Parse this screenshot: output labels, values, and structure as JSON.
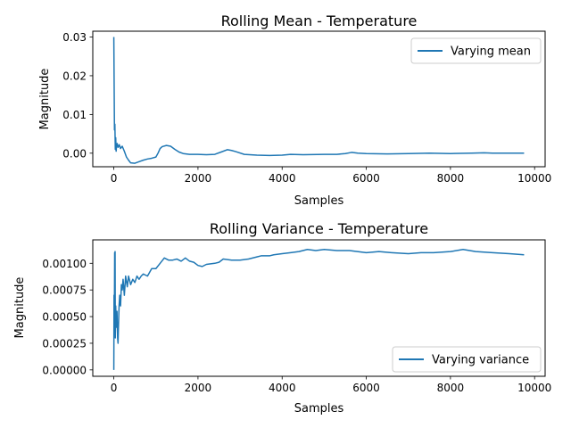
{
  "figure": {
    "background": "#ffffff"
  },
  "chart_data": [
    {
      "type": "line",
      "title": "Rolling Mean - Temperature",
      "xlabel": "Samples",
      "ylabel": "Magnitude",
      "xlim": [
        -500,
        10250
      ],
      "ylim": [
        -0.0035,
        0.0315
      ],
      "xticks": [
        0,
        2000,
        4000,
        6000,
        8000,
        10000
      ],
      "xtick_labels": [
        "0",
        "2000",
        "4000",
        "6000",
        "8000",
        "10000"
      ],
      "yticks": [
        0.0,
        0.01,
        0.02,
        0.03
      ],
      "ytick_labels": [
        "0.00",
        "0.01",
        "0.02",
        "0.03"
      ],
      "grid": false,
      "legend_position": "upper right",
      "series": [
        {
          "name": "Varying mean",
          "color": "#1f77b4",
          "points": [
            [
              0,
              0.03
            ],
            [
              15,
              0.006
            ],
            [
              25,
              0.0075
            ],
            [
              35,
              0.001
            ],
            [
              45,
              0.004
            ],
            [
              55,
              0.0005
            ],
            [
              65,
              0.002
            ],
            [
              80,
              0.0025
            ],
            [
              100,
              0.0015
            ],
            [
              130,
              0.0022
            ],
            [
              160,
              0.0012
            ],
            [
              200,
              0.0018
            ],
            [
              250,
              0.0005
            ],
            [
              300,
              -0.001
            ],
            [
              350,
              -0.0018
            ],
            [
              400,
              -0.0025
            ],
            [
              500,
              -0.0026
            ],
            [
              600,
              -0.0022
            ],
            [
              700,
              -0.0018
            ],
            [
              800,
              -0.0015
            ],
            [
              900,
              -0.0013
            ],
            [
              1000,
              -0.001
            ],
            [
              1050,
              0.0
            ],
            [
              1100,
              0.0012
            ],
            [
              1150,
              0.0017
            ],
            [
              1250,
              0.002
            ],
            [
              1350,
              0.0018
            ],
            [
              1450,
              0.001
            ],
            [
              1550,
              0.0003
            ],
            [
              1650,
              -0.0001
            ],
            [
              1800,
              -0.0003
            ],
            [
              2000,
              -0.0003
            ],
            [
              2200,
              -0.0004
            ],
            [
              2400,
              -0.0003
            ],
            [
              2550,
              0.0003
            ],
            [
              2700,
              0.0009
            ],
            [
              2800,
              0.0007
            ],
            [
              2900,
              0.0004
            ],
            [
              3100,
              -0.0003
            ],
            [
              3400,
              -0.0005
            ],
            [
              3700,
              -0.0006
            ],
            [
              4000,
              -0.0005
            ],
            [
              4200,
              -0.0003
            ],
            [
              4500,
              -0.0004
            ],
            [
              5000,
              -0.0003
            ],
            [
              5300,
              -0.0003
            ],
            [
              5500,
              -0.0001
            ],
            [
              5650,
              0.0002
            ],
            [
              5800,
              0.0
            ],
            [
              6000,
              -0.0001
            ],
            [
              6500,
              -0.0002
            ],
            [
              7000,
              -0.0001
            ],
            [
              7500,
              0.0
            ],
            [
              8000,
              -0.0001
            ],
            [
              8500,
              0.0
            ],
            [
              8800,
              0.0001
            ],
            [
              9000,
              0.0
            ],
            [
              9500,
              0.0
            ],
            [
              9750,
              0.0
            ]
          ]
        }
      ]
    },
    {
      "type": "line",
      "title": "Rolling Variance - Temperature",
      "xlabel": "Samples",
      "ylabel": "Magnitude",
      "xlim": [
        -500,
        10250
      ],
      "ylim": [
        -6e-05,
        0.00122
      ],
      "xticks": [
        0,
        2000,
        4000,
        6000,
        8000,
        10000
      ],
      "xtick_labels": [
        "0",
        "2000",
        "4000",
        "6000",
        "8000",
        "10000"
      ],
      "yticks": [
        0.0,
        0.00025,
        0.0005,
        0.00075,
        0.001
      ],
      "ytick_labels": [
        "0.00000",
        "0.00025",
        "0.00050",
        "0.00075",
        "0.00100"
      ],
      "grid": false,
      "legend_position": "lower right",
      "series": [
        {
          "name": "Varying variance",
          "color": "#1f77b4",
          "points": [
            [
              0,
              0.0
            ],
            [
              5,
              0.0007
            ],
            [
              10,
              0.0004
            ],
            [
              15,
              0.00065
            ],
            [
              20,
              0.0011
            ],
            [
              25,
              0.0005
            ],
            [
              30,
              0.00111
            ],
            [
              35,
              0.0003
            ],
            [
              45,
              0.0006
            ],
            [
              60,
              0.0004
            ],
            [
              75,
              0.00055
            ],
            [
              90,
              0.0003
            ],
            [
              100,
              0.00025
            ],
            [
              110,
              0.0004
            ],
            [
              125,
              0.0006
            ],
            [
              140,
              0.0007
            ],
            [
              160,
              0.0006
            ],
            [
              180,
              0.0008
            ],
            [
              200,
              0.00075
            ],
            [
              220,
              0.00085
            ],
            [
              250,
              0.0007
            ],
            [
              280,
              0.00088
            ],
            [
              320,
              0.00078
            ],
            [
              350,
              0.00088
            ],
            [
              400,
              0.0008
            ],
            [
              450,
              0.00085
            ],
            [
              500,
              0.00082
            ],
            [
              550,
              0.00088
            ],
            [
              600,
              0.00085
            ],
            [
              650,
              0.00088
            ],
            [
              700,
              0.0009
            ],
            [
              800,
              0.00088
            ],
            [
              900,
              0.00095
            ],
            [
              1000,
              0.00095
            ],
            [
              1100,
              0.001
            ],
            [
              1200,
              0.00105
            ],
            [
              1300,
              0.00103
            ],
            [
              1400,
              0.00103
            ],
            [
              1500,
              0.00104
            ],
            [
              1600,
              0.00102
            ],
            [
              1700,
              0.00105
            ],
            [
              1800,
              0.00102
            ],
            [
              1900,
              0.00101
            ],
            [
              2000,
              0.00098
            ],
            [
              2100,
              0.00097
            ],
            [
              2200,
              0.00099
            ],
            [
              2400,
              0.001
            ],
            [
              2500,
              0.00101
            ],
            [
              2600,
              0.00104
            ],
            [
              2800,
              0.00103
            ],
            [
              3000,
              0.00103
            ],
            [
              3200,
              0.00104
            ],
            [
              3400,
              0.00106
            ],
            [
              3500,
              0.00107
            ],
            [
              3700,
              0.00107
            ],
            [
              3800,
              0.00108
            ],
            [
              4000,
              0.00109
            ],
            [
              4200,
              0.0011
            ],
            [
              4400,
              0.00111
            ],
            [
              4600,
              0.00113
            ],
            [
              4800,
              0.00112
            ],
            [
              5000,
              0.00113
            ],
            [
              5300,
              0.00112
            ],
            [
              5600,
              0.00112
            ],
            [
              6000,
              0.0011
            ],
            [
              6300,
              0.00111
            ],
            [
              6600,
              0.0011
            ],
            [
              7000,
              0.00109
            ],
            [
              7300,
              0.0011
            ],
            [
              7600,
              0.0011
            ],
            [
              8000,
              0.00111
            ],
            [
              8300,
              0.00113
            ],
            [
              8600,
              0.00111
            ],
            [
              9000,
              0.0011
            ],
            [
              9400,
              0.00109
            ],
            [
              9750,
              0.00108
            ]
          ]
        }
      ]
    }
  ]
}
